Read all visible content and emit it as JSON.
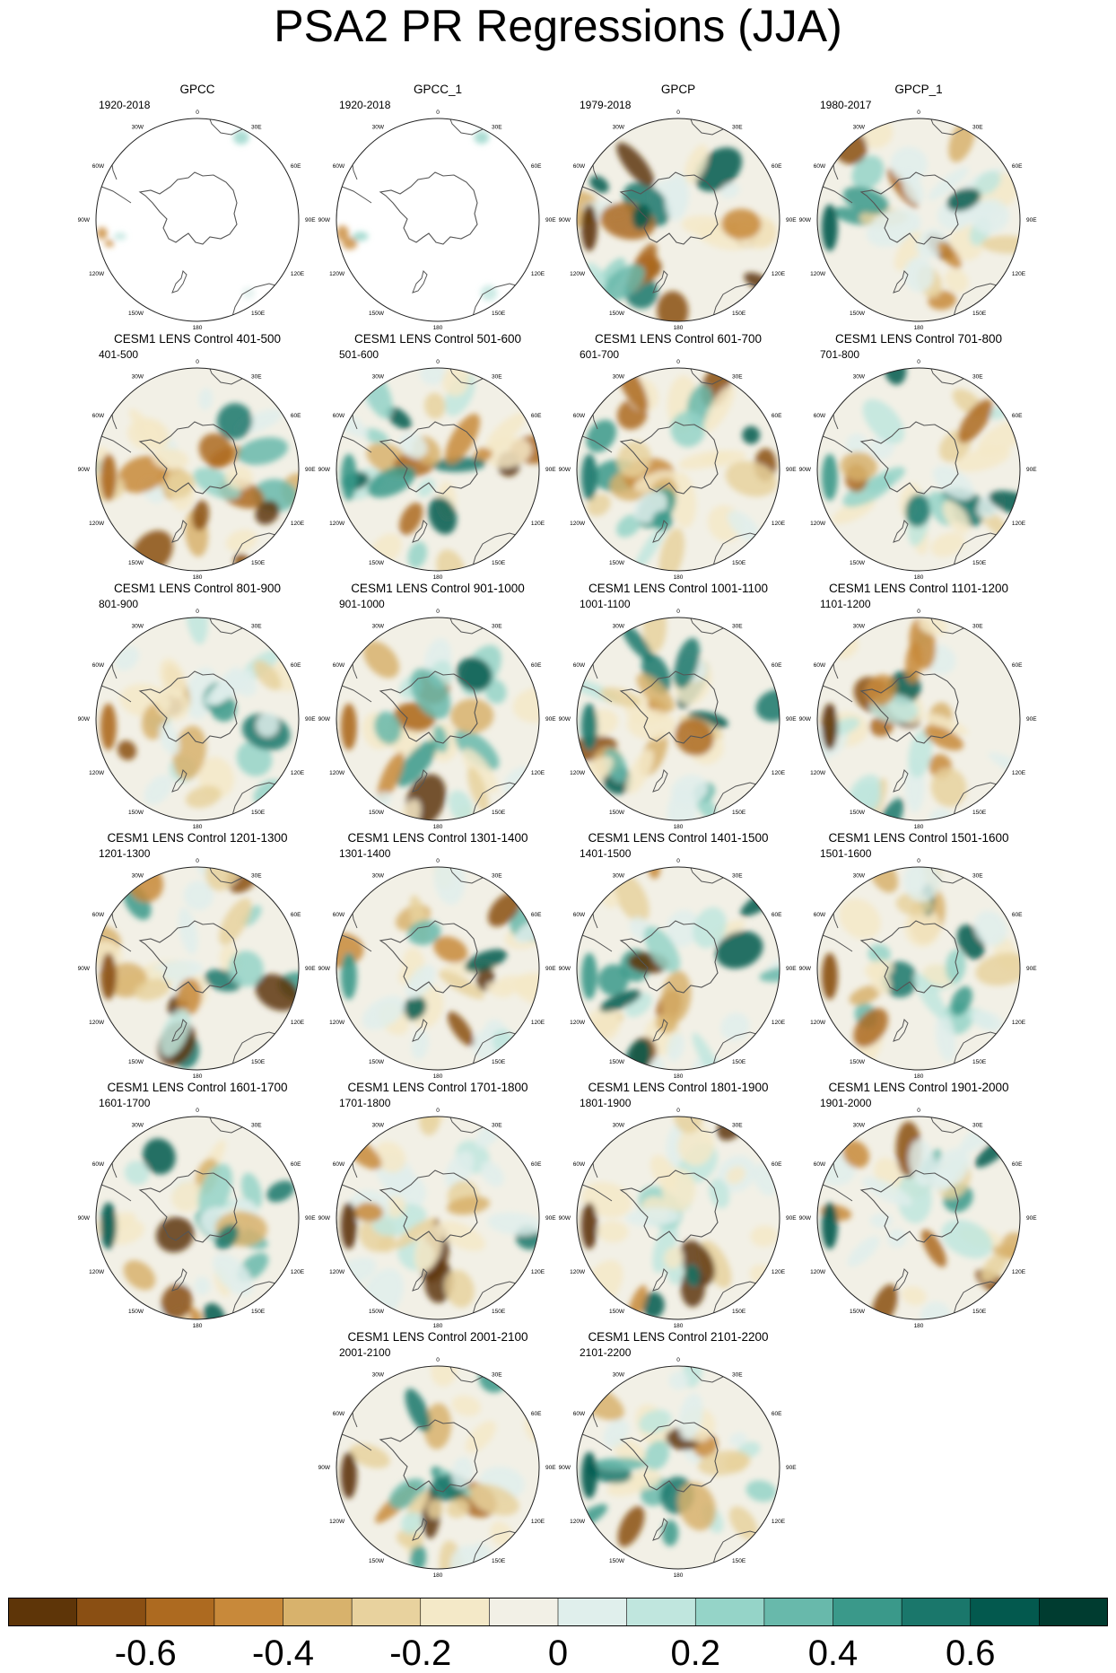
{
  "title": "PSA2 PR Regressions (JJA)",
  "colors": {
    "map_background": "#f2f0e6",
    "coastline": "#555555",
    "border": "#222222"
  },
  "longitude_labels": [
    "0",
    "30E",
    "60E",
    "90E",
    "120E",
    "150E",
    "180",
    "150W",
    "120W",
    "90W",
    "60W",
    "30W"
  ],
  "panels": [
    {
      "title": "GPCC",
      "period": "1920-2018",
      "coverage": "land_only"
    },
    {
      "title": "GPCC_1",
      "period": "1920-2018",
      "coverage": "land_only"
    },
    {
      "title": "GPCP",
      "period": "1979-2018",
      "coverage": "full"
    },
    {
      "title": "GPCP_1",
      "period": "1980-2017",
      "coverage": "full"
    },
    {
      "title": "CESM1 LENS Control 401-500",
      "period": "401-500",
      "coverage": "full"
    },
    {
      "title": "CESM1 LENS Control 501-600",
      "period": "501-600",
      "coverage": "full"
    },
    {
      "title": "CESM1 LENS Control 601-700",
      "period": "601-700",
      "coverage": "full"
    },
    {
      "title": "CESM1 LENS Control 701-800",
      "period": "701-800",
      "coverage": "full"
    },
    {
      "title": "CESM1 LENS Control 801-900",
      "period": "801-900",
      "coverage": "full"
    },
    {
      "title": "CESM1 LENS Control 901-1000",
      "period": "901-1000",
      "coverage": "full"
    },
    {
      "title": "CESM1 LENS Control 1001-1100",
      "period": "1001-1100",
      "coverage": "full"
    },
    {
      "title": "CESM1 LENS Control 1101-1200",
      "period": "1101-1200",
      "coverage": "full"
    },
    {
      "title": "CESM1 LENS Control 1201-1300",
      "period": "1201-1300",
      "coverage": "full"
    },
    {
      "title": "CESM1 LENS Control 1301-1400",
      "period": "1301-1400",
      "coverage": "full"
    },
    {
      "title": "CESM1 LENS Control 1401-1500",
      "period": "1401-1500",
      "coverage": "full"
    },
    {
      "title": "CESM1 LENS Control 1501-1600",
      "period": "1501-1600",
      "coverage": "full"
    },
    {
      "title": "CESM1 LENS Control 1601-1700",
      "period": "1601-1700",
      "coverage": "full"
    },
    {
      "title": "CESM1 LENS Control 1701-1800",
      "period": "1701-1800",
      "coverage": "full"
    },
    {
      "title": "CESM1 LENS Control 1801-1900",
      "period": "1801-1900",
      "coverage": "full"
    },
    {
      "title": "CESM1 LENS Control 1901-2000",
      "period": "1901-2000",
      "coverage": "full"
    },
    {
      "title": "CESM1 LENS Control 2001-2100",
      "period": "2001-2100",
      "coverage": "full"
    },
    {
      "title": "CESM1 LENS Control 2101-2200",
      "period": "2101-2200",
      "coverage": "full"
    }
  ],
  "colorbar": {
    "colors": [
      "#5e3508",
      "#8a4f13",
      "#ad6a20",
      "#c8893a",
      "#d8b26c",
      "#e8d29e",
      "#f4e9c8",
      "#f2f0e6",
      "#e0efec",
      "#c0e6de",
      "#95d4c8",
      "#68b9ab",
      "#3a998a",
      "#1a776b",
      "#03594e",
      "#003c30"
    ],
    "ticks": [
      {
        "value": -0.6,
        "label": "-0.6"
      },
      {
        "value": -0.4,
        "label": "-0.4"
      },
      {
        "value": -0.2,
        "label": "-0.2"
      },
      {
        "value": 0,
        "label": "0"
      },
      {
        "value": 0.2,
        "label": "0.2"
      },
      {
        "value": 0.4,
        "label": "0.4"
      },
      {
        "value": 0.6,
        "label": "0.6"
      }
    ],
    "min": -0.8,
    "max": 0.8
  }
}
